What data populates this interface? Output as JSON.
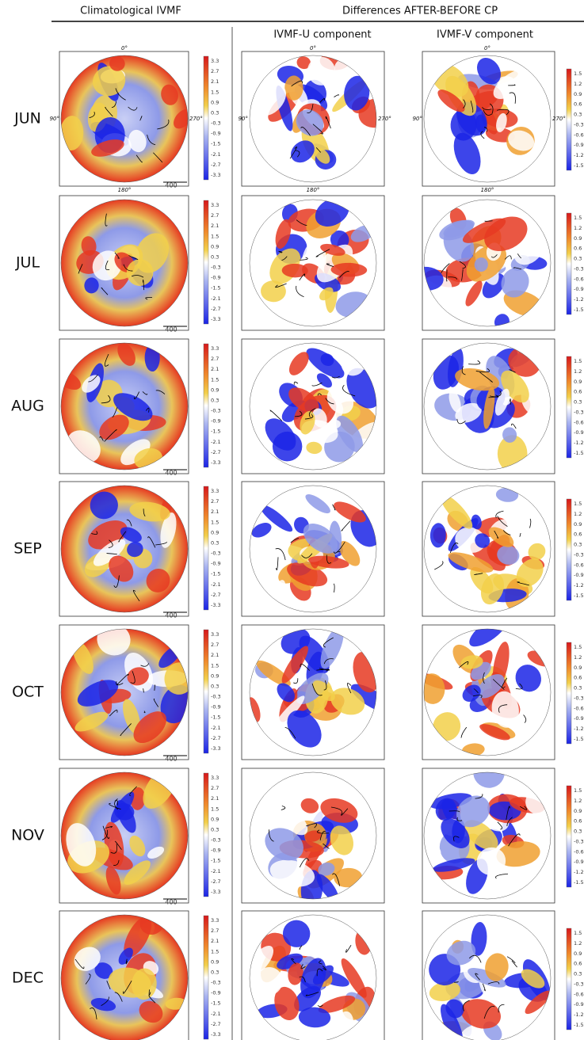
{
  "header": {
    "left": "Climatological IVMF",
    "right": "Differences AFTER-BEFORE CP"
  },
  "columns": [
    "IVMF-U component",
    "IVMF-V component"
  ],
  "rows": [
    "JUN",
    "JUL",
    "AUG",
    "SEP",
    "OCT",
    "NOV",
    "DEC"
  ],
  "longitudes": {
    "top": "0°",
    "left": "90°",
    "right": "270°",
    "bottom": "180°"
  },
  "vector_scale": "400",
  "colorbar_clim": [
    "3.3",
    "2.7",
    "2.1",
    "1.5",
    "0.9",
    "0.3",
    "-0.3",
    "-0.9",
    "-1.5",
    "-2.1",
    "-2.7",
    "-3.3"
  ],
  "colorbar_diff": [
    "1.5",
    "1.2",
    "0.9",
    "0.6",
    "0.3",
    "-0.3",
    "-0.6",
    "-0.9",
    "-1.2",
    "-1.5"
  ]
}
